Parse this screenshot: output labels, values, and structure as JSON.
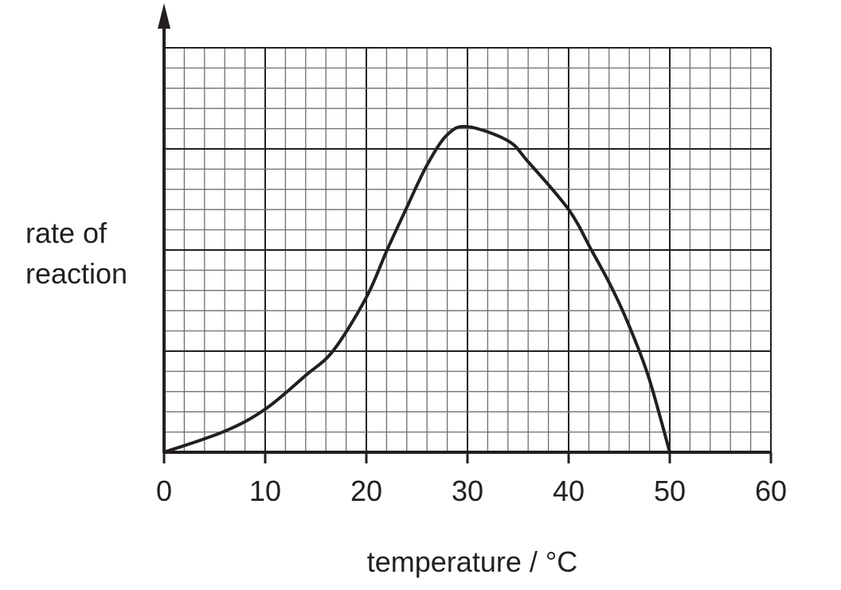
{
  "chart_data": {
    "type": "line",
    "title": "",
    "xlabel": "temperature / °C",
    "ylabel_lines": [
      "rate of",
      "reaction"
    ],
    "xlim": [
      0,
      60
    ],
    "ylim": [
      0,
      20
    ],
    "y_unit_note": "y values in small grid squares (no y tick labels shown)",
    "x_ticks": [
      0,
      10,
      20,
      30,
      40,
      50,
      60
    ],
    "x_tick_labels": [
      "0",
      "10",
      "20",
      "30",
      "40",
      "50",
      "60"
    ],
    "x_minor_step": 2,
    "y_major_step": 5,
    "y_minor_step": 1,
    "grid": true,
    "series": [
      {
        "name": "rate of reaction",
        "color": "#231f20",
        "x": [
          0,
          6,
          10,
          14,
          16.75,
          20,
          22.05,
          23.9,
          26,
          28,
          30,
          34,
          36,
          40,
          42.25,
          44.2,
          45.9,
          47.9,
          50
        ],
        "y": [
          0,
          1.04,
          2.13,
          3.8,
          5.04,
          7.66,
          10.0,
          12.0,
          14.2,
          15.7,
          16.1,
          15.4,
          14.36,
          12.0,
          10.0,
          8.2,
          6.35,
          3.73,
          0
        ]
      }
    ]
  }
}
